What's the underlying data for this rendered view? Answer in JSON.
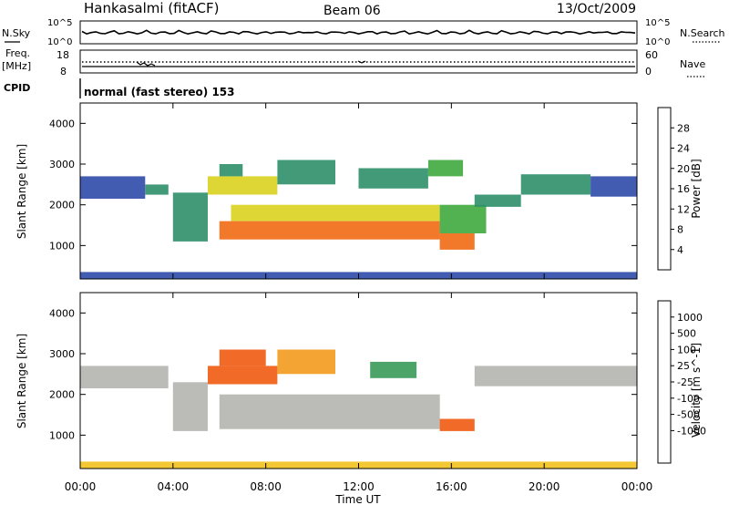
{
  "header": {
    "station": "Hankasalmi (fitACF)",
    "beam": "Beam 06",
    "date": "13/Oct/2009"
  },
  "sky_panel": {
    "label": "N.Sky",
    "left_ticks": [
      "10^5",
      "10^0"
    ],
    "right_label": "N.Search",
    "right_ticks": [
      "10^5",
      "10^0"
    ]
  },
  "freq_panel": {
    "label_line1": "Freq.",
    "label_line2": "[MHz]",
    "left_ticks": [
      "18",
      "8"
    ],
    "right_label": "Nave",
    "right_ticks": [
      "60",
      "0"
    ]
  },
  "cpid_panel": {
    "label": "CPID",
    "text": "normal (fast stereo) 153"
  },
  "colors": {
    "power": [
      "#1a1aff",
      "#2c4aa8",
      "#2e8f6a",
      "#3faa3f",
      "#d9d21f",
      "#f3a51b",
      "#f06a12",
      "#e32222"
    ],
    "velocity": [
      "#e21a1a",
      "#ef5a10",
      "#f39a1c",
      "#f3c21e",
      "#c8c8c0",
      "#b4b4b0",
      "#7cc83a",
      "#3a9a58",
      "#3a74b4",
      "#2626c8"
    ]
  },
  "chart_data": [
    {
      "type": "heatmap",
      "name": "Power",
      "ylabel": "Slant Range [km]",
      "xlabel": "",
      "xlim": [
        "00:00",
        "24:00"
      ],
      "ylim": [
        180,
        4500
      ],
      "yticks": [
        "1000",
        "2000",
        "3000",
        "4000"
      ],
      "colorbar": {
        "label": "Power [dB]",
        "ticks": [
          "4",
          "8",
          "12",
          "16",
          "20",
          "24",
          "28"
        ],
        "range": [
          0,
          32
        ]
      },
      "regions": [
        {
          "t0": 0.0,
          "t1": 2.8,
          "r0": 2150,
          "r1": 2700,
          "value": 6
        },
        {
          "t0": 2.8,
          "t1": 3.8,
          "r0": 2250,
          "r1": 2500,
          "value": 8
        },
        {
          "t0": 4.0,
          "t1": 5.5,
          "r0": 1100,
          "r1": 2300,
          "value": 10
        },
        {
          "t0": 5.5,
          "t1": 8.5,
          "r0": 2250,
          "r1": 2700,
          "value": 18
        },
        {
          "t0": 6.0,
          "t1": 7.0,
          "r0": 2700,
          "r1": 3000,
          "value": 10
        },
        {
          "t0": 8.5,
          "t1": 11.0,
          "r0": 2500,
          "r1": 3100,
          "value": 8
        },
        {
          "t0": 6.5,
          "t1": 15.5,
          "r0": 1600,
          "r1": 2000,
          "value": 16
        },
        {
          "t0": 6.0,
          "t1": 15.5,
          "r0": 1150,
          "r1": 1600,
          "value": 26
        },
        {
          "t0": 15.5,
          "t1": 17.0,
          "r0": 900,
          "r1": 1300,
          "value": 24
        },
        {
          "t0": 15.5,
          "t1": 17.5,
          "r0": 1300,
          "r1": 2000,
          "value": 12
        },
        {
          "t0": 12.0,
          "t1": 15.0,
          "r0": 2400,
          "r1": 2900,
          "value": 8
        },
        {
          "t0": 15.0,
          "t1": 16.5,
          "r0": 2700,
          "r1": 3100,
          "value": 12
        },
        {
          "t0": 17.0,
          "t1": 19.0,
          "r0": 1950,
          "r1": 2250,
          "value": 8
        },
        {
          "t0": 19.0,
          "t1": 22.0,
          "r0": 2250,
          "r1": 2750,
          "value": 10
        },
        {
          "t0": 22.0,
          "t1": 24.0,
          "r0": 2200,
          "r1": 2700,
          "value": 6
        },
        {
          "t0": 0.0,
          "t1": 24.0,
          "r0": 180,
          "r1": 350,
          "value": 4
        }
      ]
    },
    {
      "type": "heatmap",
      "name": "Velocity",
      "ylabel": "Slant Range [km]",
      "xlabel": "Time UT",
      "xticks": [
        "00:00",
        "04:00",
        "08:00",
        "12:00",
        "16:00",
        "20:00",
        "00:00"
      ],
      "xlim": [
        "00:00",
        "24:00"
      ],
      "ylim": [
        180,
        4500
      ],
      "yticks": [
        "1000",
        "2000",
        "3000",
        "4000"
      ],
      "colorbar": {
        "label": "Velocity [m s^-1]",
        "ticks": [
          "1000",
          "500",
          "100",
          "25",
          "-25",
          "-100",
          "-500",
          "-1000"
        ]
      },
      "regions": [
        {
          "t0": 0.0,
          "t1": 3.8,
          "r0": 2150,
          "r1": 2700,
          "value": 0
        },
        {
          "t0": 4.0,
          "t1": 5.5,
          "r0": 1100,
          "r1": 2300,
          "value": 0
        },
        {
          "t0": 5.5,
          "t1": 8.5,
          "r0": 2250,
          "r1": 2700,
          "value": -300
        },
        {
          "t0": 6.0,
          "t1": 8.0,
          "r0": 2700,
          "r1": 3100,
          "value": -400
        },
        {
          "t0": 6.0,
          "t1": 15.5,
          "r0": 1150,
          "r1": 2000,
          "value": 0
        },
        {
          "t0": 15.5,
          "t1": 17.0,
          "r0": 1100,
          "r1": 1400,
          "value": -200
        },
        {
          "t0": 8.5,
          "t1": 11.0,
          "r0": 2500,
          "r1": 3100,
          "value": -80
        },
        {
          "t0": 12.5,
          "t1": 14.5,
          "r0": 2400,
          "r1": 2800,
          "value": 60
        },
        {
          "t0": 17.0,
          "t1": 24.0,
          "r0": 2200,
          "r1": 2700,
          "value": 0
        },
        {
          "t0": 0.0,
          "t1": 24.0,
          "r0": 180,
          "r1": 350,
          "value": -50
        }
      ]
    }
  ]
}
